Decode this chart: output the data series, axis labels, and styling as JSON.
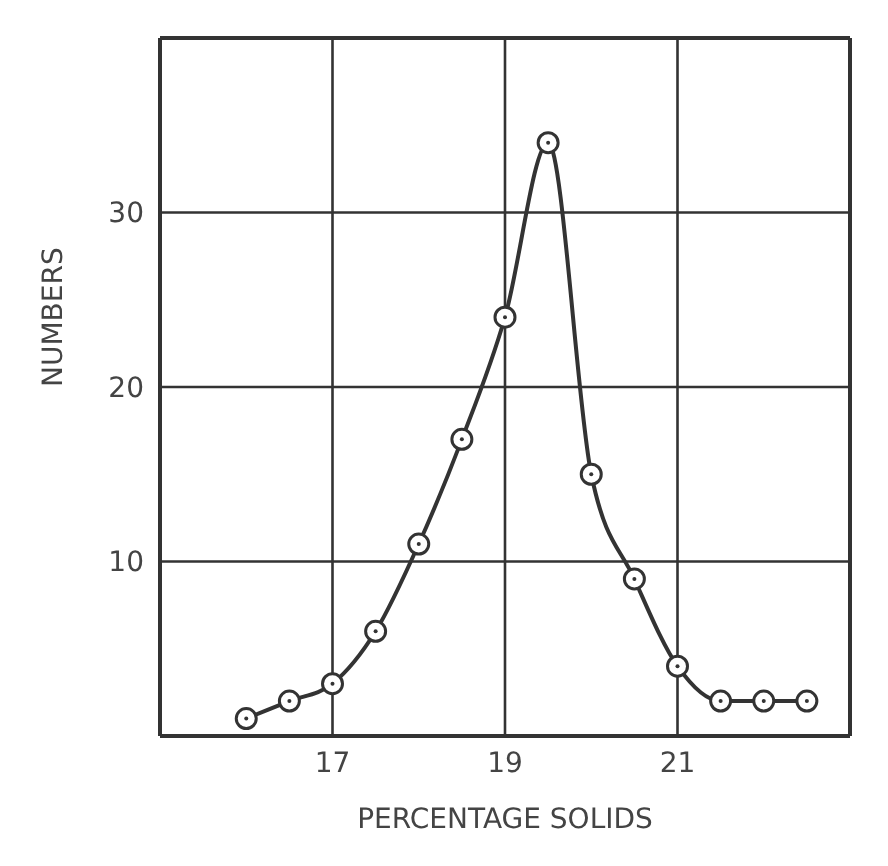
{
  "chart_data": {
    "type": "line",
    "xlabel": "PERCENTAGE  SOLIDS",
    "ylabel": "NUMBERS",
    "x": [
      16,
      16.5,
      17,
      17.5,
      18,
      18.5,
      19,
      19.5,
      20,
      20.5,
      21,
      21.5,
      22,
      22.5
    ],
    "series": [
      {
        "color": "#333333",
        "values": [
          1,
          2,
          3,
          6,
          11,
          17,
          24,
          34,
          15,
          9,
          4,
          2,
          2,
          2
        ]
      }
    ],
    "xlim": [
      15,
      23
    ],
    "xticks": [
      17,
      19,
      21
    ],
    "ylim": [
      0,
      40
    ],
    "yticks": [
      10,
      20,
      30
    ],
    "grid": true,
    "marker": "circle",
    "line_style": "solid"
  }
}
